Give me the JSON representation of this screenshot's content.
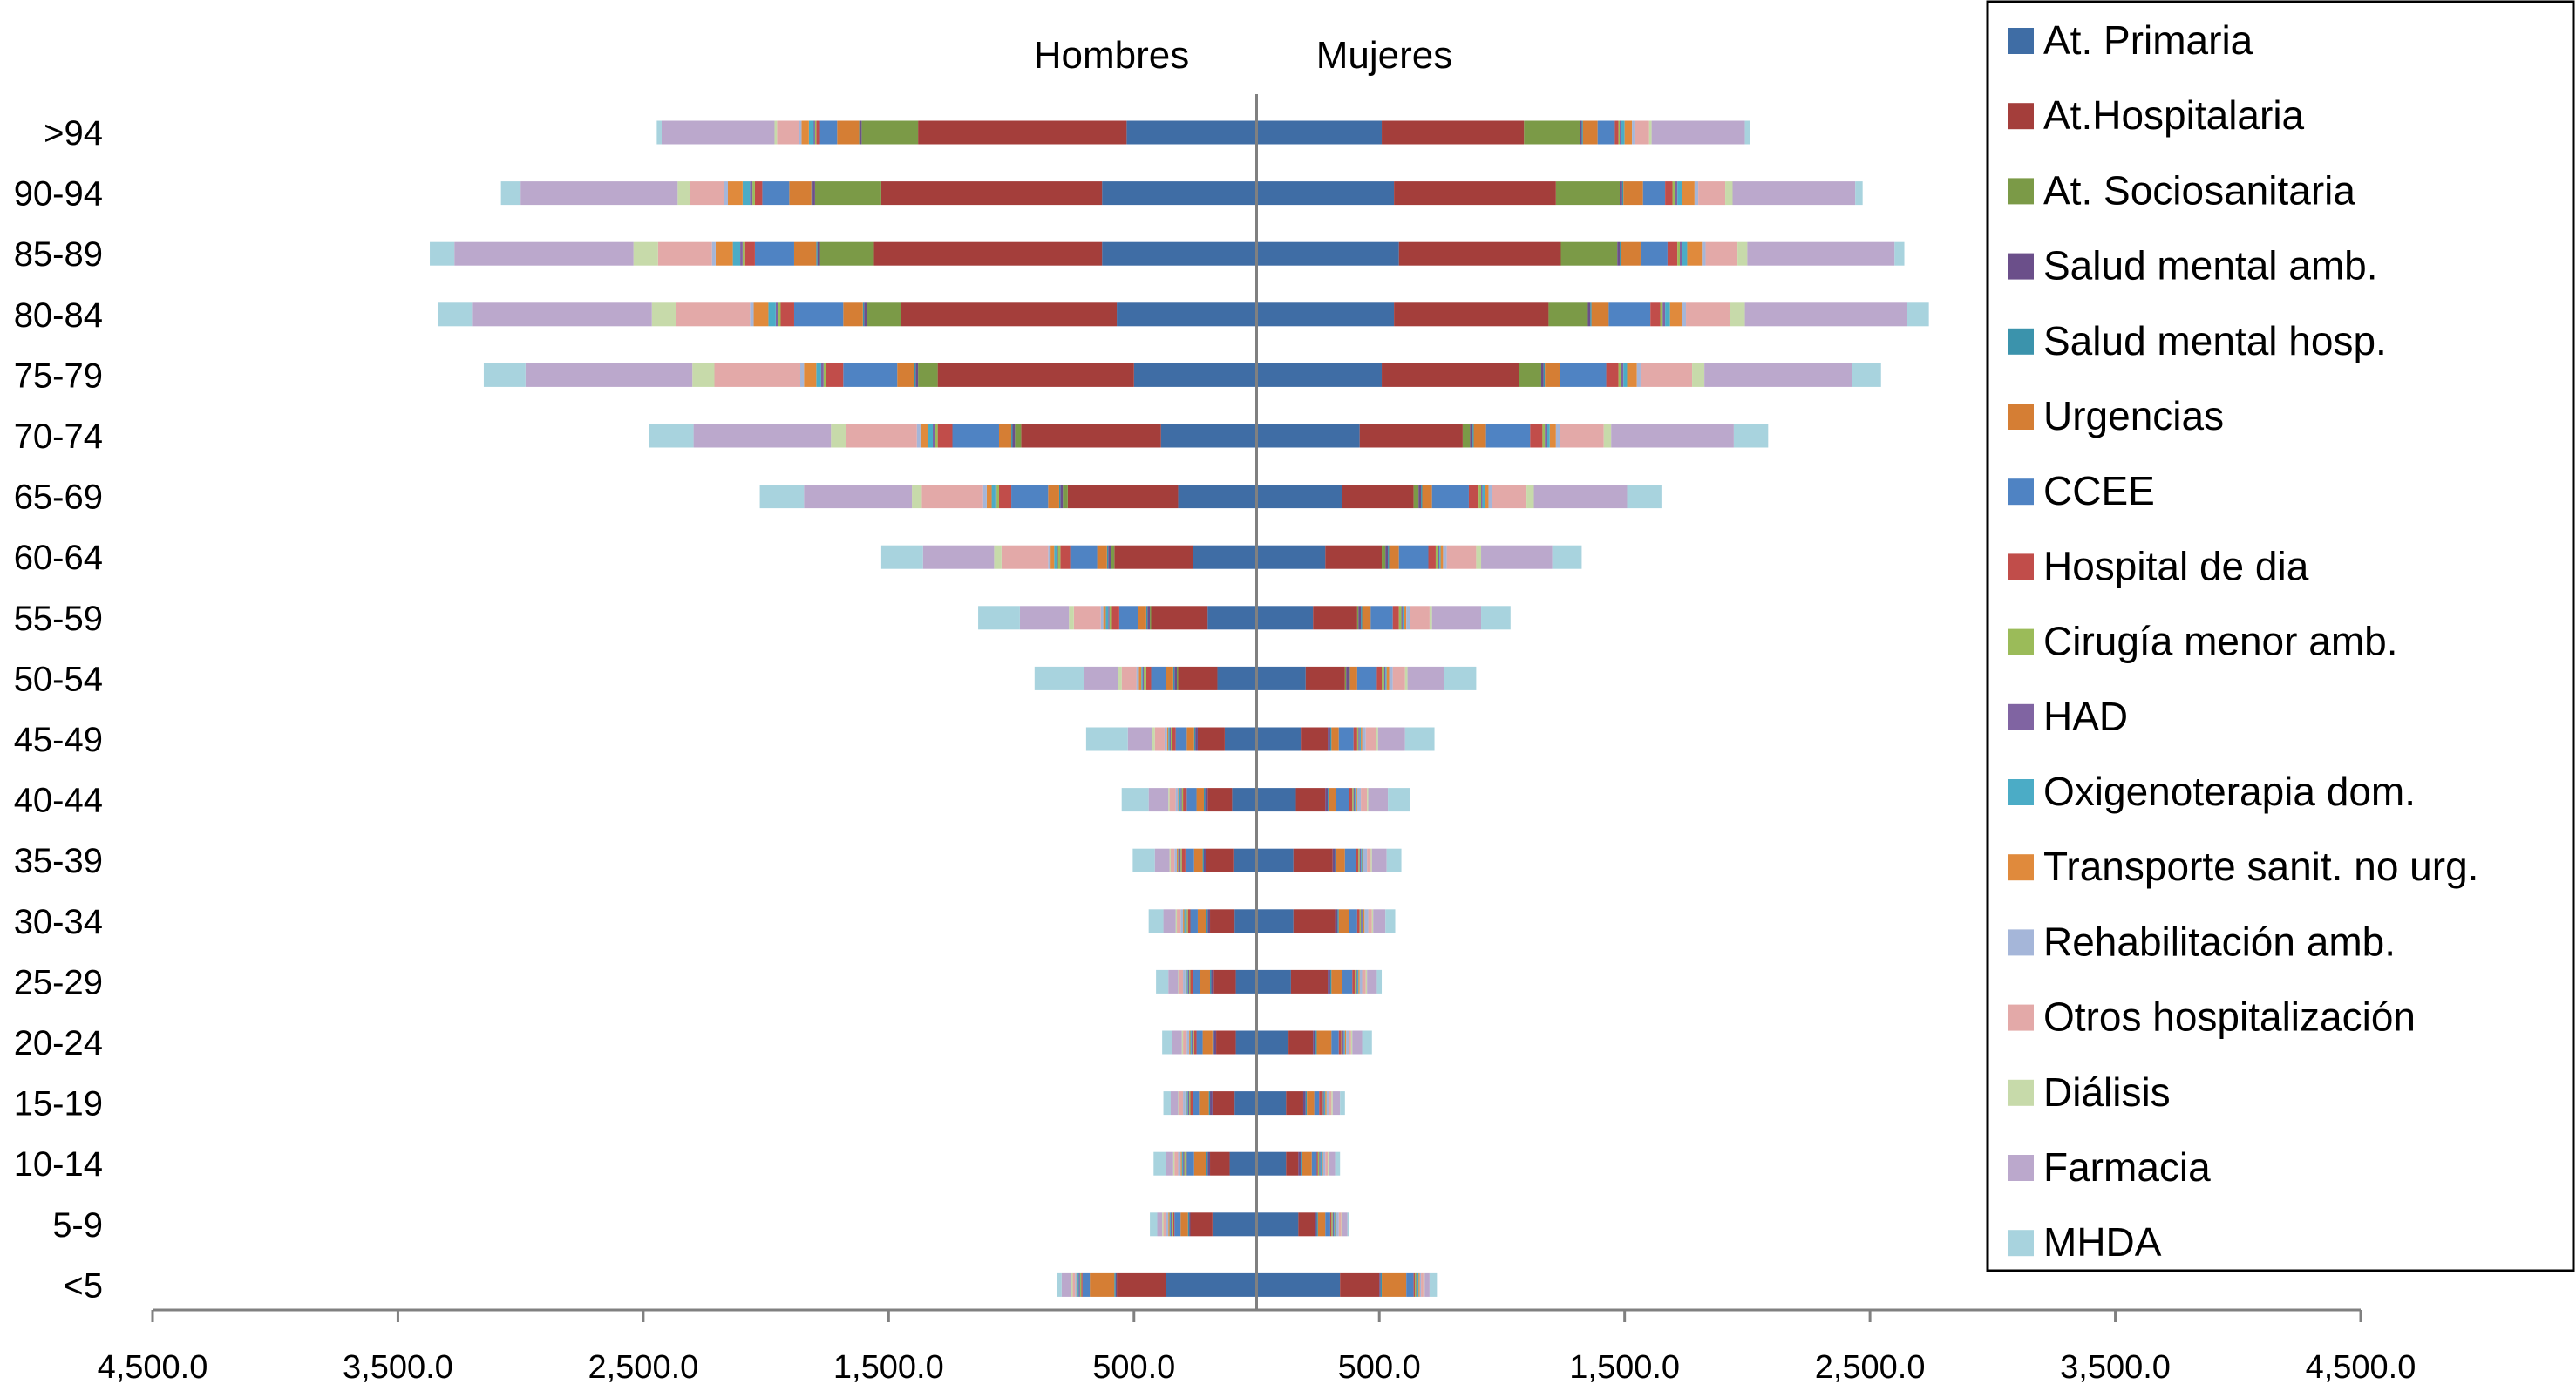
{
  "chart_data": {
    "type": "bar",
    "orientation": "horizontal",
    "stacked": true,
    "diverging": true,
    "title": "",
    "xlabel": "",
    "ylabel": "",
    "xlim": [
      -4500,
      4500
    ],
    "x_ticks": [
      -4500,
      -3500,
      -2500,
      -1500,
      -500,
      500,
      1500,
      2500,
      3500,
      4500
    ],
    "x_tick_labels": [
      "4,500.0",
      "3,500.0",
      "2,500.0",
      "1,500.0",
      "500.0",
      "500.0",
      "1,500.0",
      "2,500.0",
      "3,500.0",
      "4,500.0"
    ],
    "side_labels": {
      "left": "Hombres",
      "right": "Mujeres"
    },
    "legend_position": "top-right",
    "grid": false,
    "categories": [
      ">94",
      "90-94",
      "85-89",
      "80-84",
      "75-79",
      "70-74",
      "65-69",
      "60-64",
      "55-59",
      "50-54",
      "45-49",
      "40-44",
      "35-39",
      "30-34",
      "25-29",
      "20-24",
      "15-19",
      "10-14",
      "5-9",
      "<5"
    ],
    "series_colors": [
      "#3F6DA5",
      "#A43E3B",
      "#7B9A47",
      "#6B4F8A",
      "#3B93AC",
      "#D57E34",
      "#4F83C3",
      "#C14D4A",
      "#9BBB59",
      "#8064A2",
      "#4BACC6",
      "#E08A3C",
      "#A5B6D9",
      "#E3A9A8",
      "#C7DAAA",
      "#BBA8CC",
      "#A8D3DE"
    ],
    "series": [
      {
        "name": "At. Primaria",
        "male": [
          530,
          630,
          630,
          570,
          500,
          390,
          320,
          260,
          200,
          160,
          130,
          100,
          95,
          90,
          85,
          85,
          90,
          110,
          180,
          370
        ],
        "female": [
          510,
          560,
          580,
          560,
          510,
          420,
          350,
          280,
          230,
          200,
          180,
          160,
          150,
          150,
          140,
          130,
          120,
          120,
          170,
          340
        ]
      },
      {
        "name": "At.Hospitalaria",
        "male": [
          850,
          900,
          930,
          880,
          800,
          570,
          450,
          320,
          230,
          160,
          110,
          100,
          110,
          100,
          90,
          80,
          90,
          80,
          90,
          200
        ],
        "female": [
          580,
          660,
          660,
          630,
          560,
          420,
          290,
          230,
          180,
          160,
          110,
          120,
          160,
          170,
          150,
          100,
          70,
          50,
          70,
          160
        ]
      },
      {
        "name": "At. Sociosanitaria",
        "male": [
          230,
          270,
          220,
          140,
          80,
          25,
          20,
          15,
          5,
          5,
          0,
          0,
          0,
          0,
          0,
          0,
          0,
          0,
          0,
          0
        ],
        "female": [
          230,
          260,
          230,
          160,
          90,
          30,
          20,
          15,
          5,
          5,
          0,
          0,
          0,
          0,
          0,
          0,
          0,
          0,
          0,
          0
        ]
      },
      {
        "name": "Salud mental amb.",
        "male": [
          5,
          10,
          10,
          10,
          10,
          10,
          10,
          10,
          10,
          10,
          10,
          10,
          10,
          10,
          10,
          10,
          10,
          10,
          5,
          5
        ],
        "female": [
          5,
          10,
          10,
          10,
          10,
          10,
          10,
          10,
          10,
          10,
          10,
          10,
          10,
          10,
          10,
          10,
          10,
          10,
          5,
          5
        ]
      },
      {
        "name": "Salud mental hosp.",
        "male": [
          5,
          5,
          5,
          5,
          5,
          5,
          5,
          5,
          5,
          5,
          5,
          5,
          5,
          5,
          5,
          5,
          5,
          5,
          5,
          5
        ],
        "female": [
          5,
          5,
          5,
          5,
          5,
          5,
          5,
          5,
          5,
          5,
          5,
          5,
          5,
          5,
          5,
          5,
          5,
          5,
          5,
          5
        ]
      },
      {
        "name": "Urgencias",
        "male": [
          90,
          90,
          90,
          80,
          70,
          50,
          45,
          40,
          35,
          30,
          30,
          30,
          35,
          35,
          40,
          40,
          40,
          50,
          30,
          100
        ],
        "female": [
          60,
          80,
          80,
          70,
          60,
          50,
          40,
          40,
          35,
          30,
          30,
          30,
          35,
          40,
          45,
          60,
          30,
          40,
          30,
          100
        ]
      },
      {
        "name": "CCEE",
        "male": [
          70,
          110,
          160,
          200,
          220,
          190,
          150,
          110,
          75,
          60,
          45,
          40,
          35,
          30,
          30,
          25,
          25,
          30,
          25,
          30
        ],
        "female": [
          70,
          90,
          110,
          170,
          190,
          180,
          150,
          120,
          90,
          80,
          60,
          50,
          45,
          35,
          40,
          30,
          20,
          20,
          20,
          30
        ]
      },
      {
        "name": "Hospital de dia",
        "male": [
          15,
          30,
          40,
          55,
          70,
          60,
          50,
          40,
          30,
          20,
          15,
          15,
          15,
          10,
          10,
          10,
          10,
          5,
          5,
          5
        ],
        "female": [
          15,
          30,
          40,
          40,
          50,
          50,
          40,
          30,
          25,
          20,
          15,
          15,
          10,
          10,
          10,
          10,
          10,
          5,
          5,
          5
        ]
      },
      {
        "name": "Cirugía menor amb.",
        "male": [
          5,
          10,
          10,
          10,
          10,
          10,
          10,
          10,
          10,
          10,
          5,
          5,
          5,
          5,
          5,
          5,
          5,
          5,
          5,
          5
        ],
        "female": [
          5,
          10,
          10,
          10,
          10,
          10,
          10,
          10,
          10,
          10,
          5,
          5,
          5,
          5,
          5,
          5,
          5,
          5,
          5,
          5
        ]
      },
      {
        "name": "HAD",
        "male": [
          5,
          10,
          10,
          10,
          10,
          10,
          5,
          5,
          5,
          5,
          5,
          5,
          5,
          5,
          5,
          5,
          5,
          5,
          5,
          5
        ],
        "female": [
          5,
          10,
          10,
          10,
          10,
          10,
          5,
          5,
          5,
          5,
          5,
          5,
          5,
          5,
          5,
          5,
          5,
          5,
          5,
          5
        ]
      },
      {
        "name": "Oxigenoterapia dom.",
        "male": [
          20,
          30,
          30,
          30,
          20,
          20,
          15,
          10,
          10,
          5,
          5,
          5,
          5,
          5,
          5,
          5,
          5,
          5,
          5,
          5
        ],
        "female": [
          15,
          20,
          20,
          20,
          15,
          10,
          10,
          5,
          5,
          5,
          5,
          5,
          5,
          5,
          5,
          5,
          5,
          5,
          5,
          5
        ]
      },
      {
        "name": "Transporte sanit. no urg.",
        "male": [
          30,
          60,
          70,
          60,
          50,
          30,
          20,
          15,
          10,
          10,
          5,
          5,
          5,
          5,
          5,
          5,
          5,
          5,
          5,
          5
        ],
        "female": [
          30,
          50,
          60,
          50,
          40,
          25,
          15,
          10,
          10,
          10,
          5,
          5,
          5,
          5,
          5,
          5,
          5,
          5,
          5,
          5
        ]
      },
      {
        "name": "Rehabilitación amb.",
        "male": [
          10,
          15,
          15,
          15,
          15,
          15,
          15,
          10,
          10,
          10,
          10,
          10,
          10,
          10,
          10,
          10,
          10,
          10,
          10,
          5
        ],
        "female": [
          10,
          15,
          15,
          15,
          15,
          15,
          15,
          15,
          15,
          15,
          15,
          15,
          15,
          15,
          10,
          10,
          10,
          10,
          10,
          5
        ]
      },
      {
        "name": "Otros hospitalización",
        "male": [
          90,
          140,
          220,
          300,
          350,
          290,
          250,
          190,
          110,
          60,
          40,
          25,
          15,
          15,
          15,
          15,
          15,
          15,
          10,
          10
        ],
        "female": [
          60,
          110,
          130,
          180,
          210,
          180,
          140,
          120,
          80,
          50,
          40,
          25,
          15,
          15,
          15,
          10,
          10,
          10,
          10,
          10
        ]
      },
      {
        "name": "Diálisis",
        "male": [
          10,
          50,
          100,
          100,
          90,
          60,
          40,
          30,
          20,
          15,
          10,
          5,
          5,
          5,
          5,
          5,
          5,
          5,
          5,
          5
        ],
        "female": [
          10,
          30,
          40,
          60,
          50,
          30,
          30,
          20,
          10,
          10,
          10,
          5,
          5,
          5,
          5,
          5,
          5,
          5,
          5,
          5
        ]
      },
      {
        "name": "Farmacia",
        "male": [
          460,
          640,
          730,
          730,
          680,
          560,
          440,
          290,
          200,
          140,
          100,
          80,
          60,
          50,
          40,
          40,
          30,
          30,
          20,
          40
        ],
        "female": [
          380,
          500,
          600,
          660,
          600,
          500,
          380,
          290,
          200,
          150,
          110,
          80,
          60,
          50,
          40,
          40,
          30,
          25,
          20,
          20
        ]
      },
      {
        "name": "MHDA",
        "male": [
          20,
          80,
          100,
          140,
          170,
          180,
          180,
          170,
          170,
          200,
          170,
          110,
          90,
          60,
          50,
          40,
          30,
          50,
          30,
          20
        ],
        "female": [
          20,
          30,
          40,
          90,
          120,
          140,
          140,
          120,
          120,
          130,
          120,
          90,
          60,
          40,
          20,
          40,
          20,
          20,
          5,
          30
        ]
      }
    ]
  }
}
